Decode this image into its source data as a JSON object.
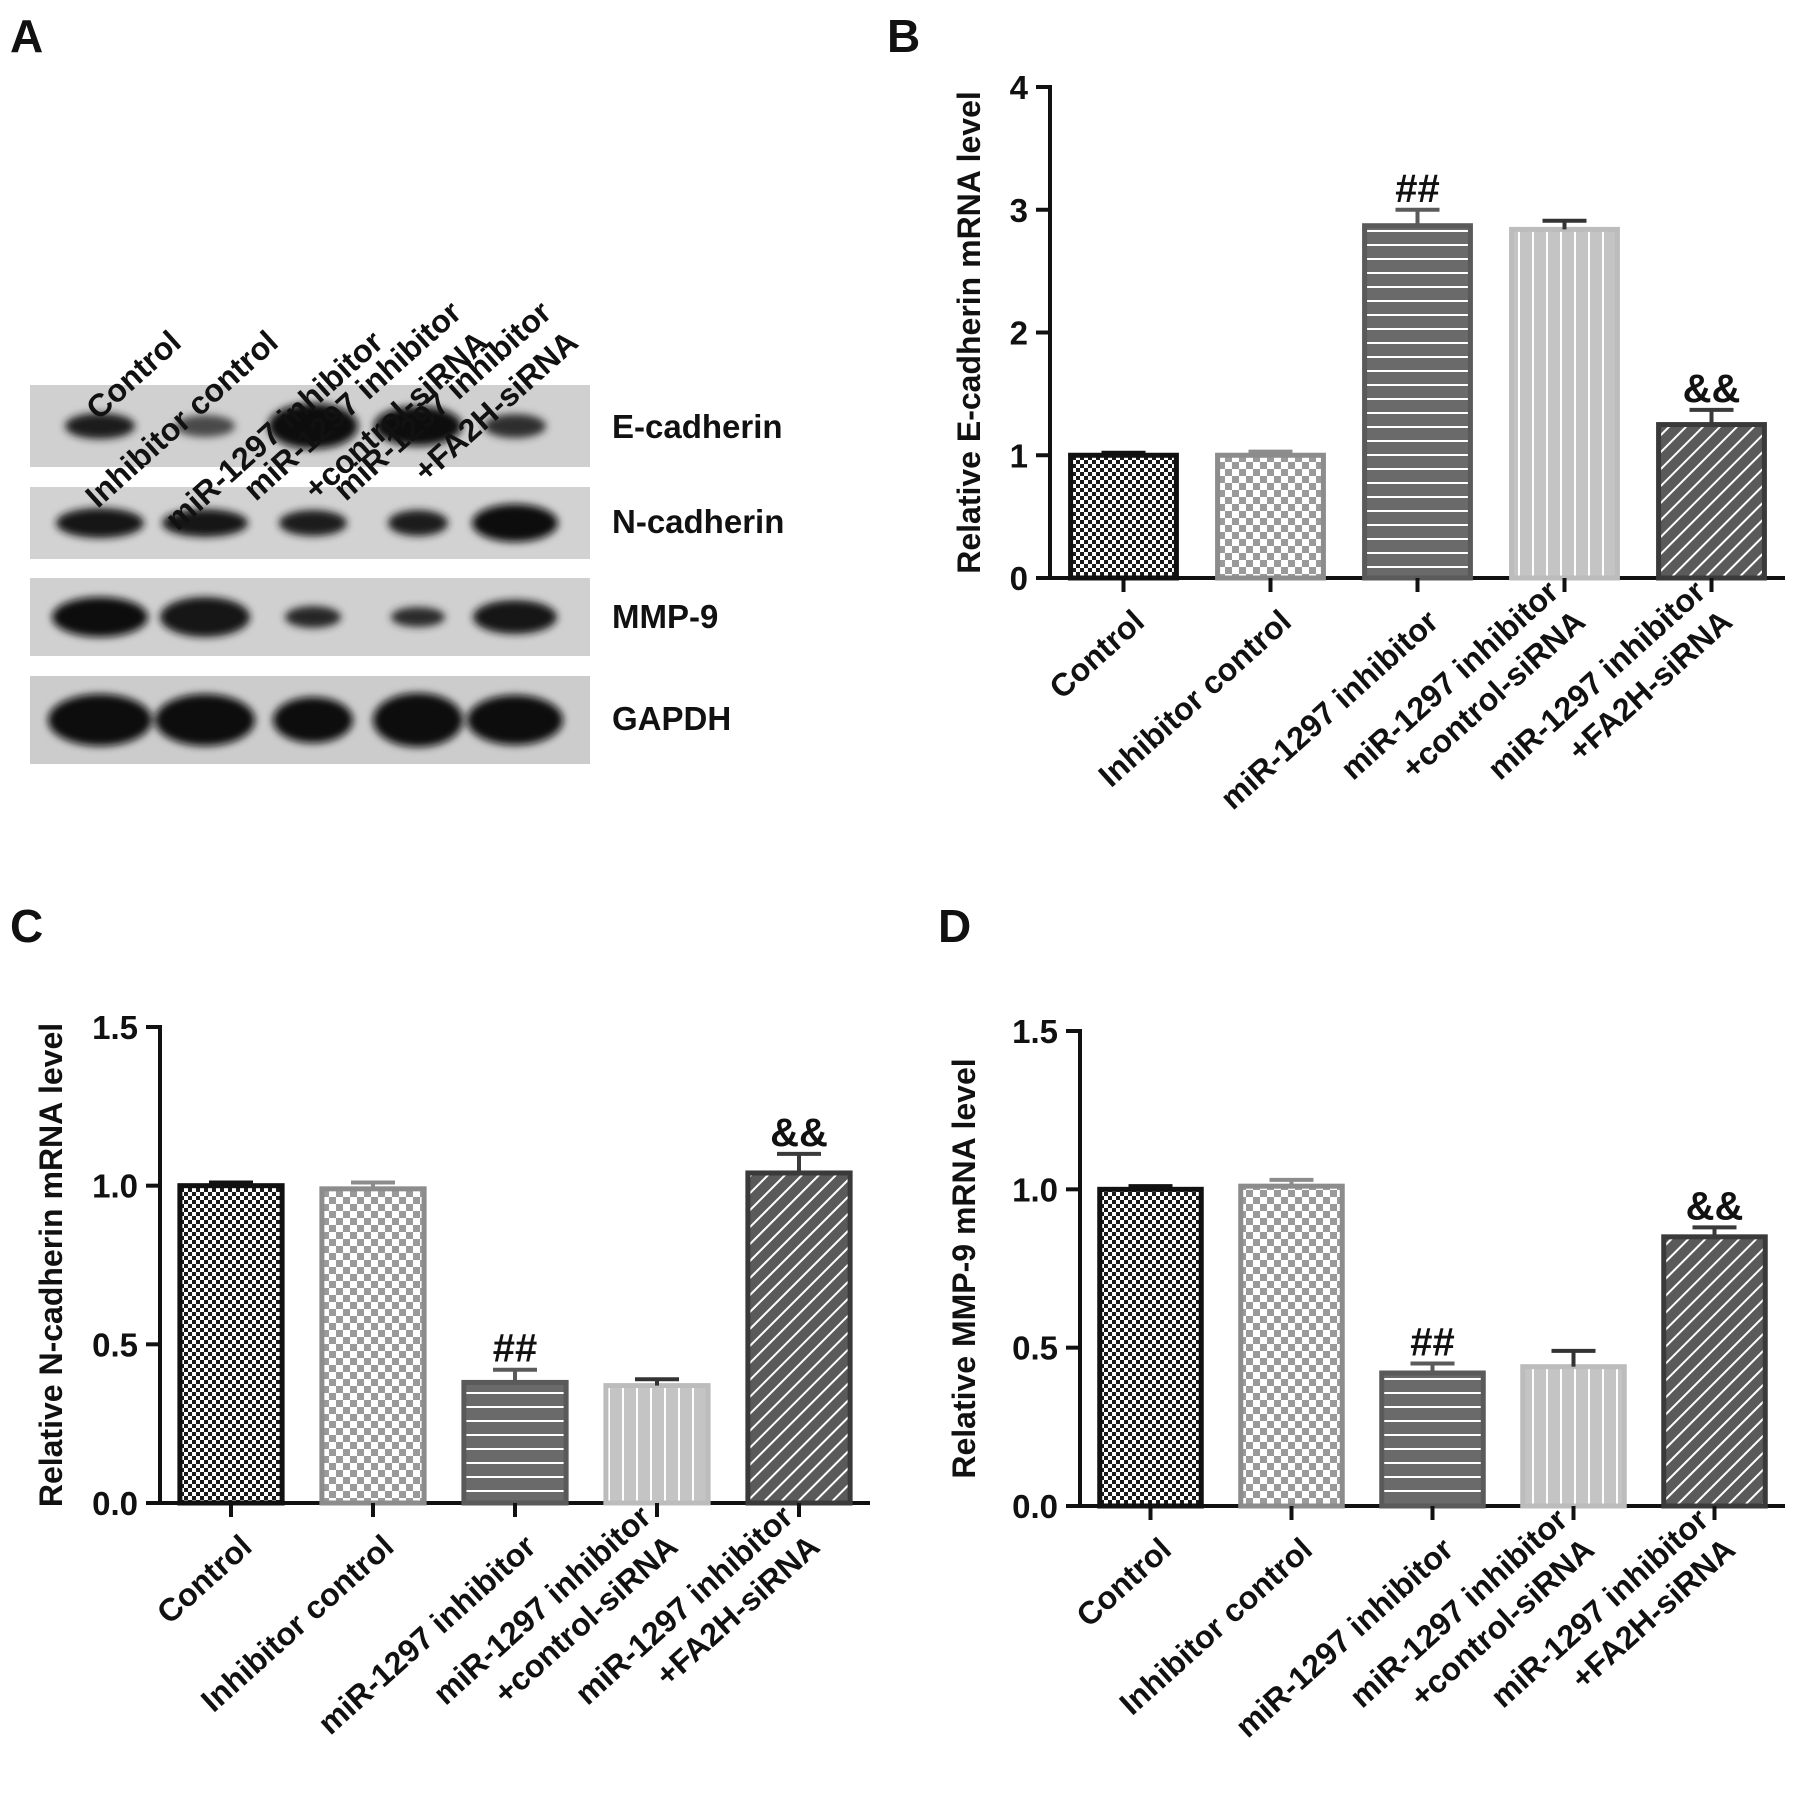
{
  "panels": {
    "A": "A",
    "B": "B",
    "C": "C",
    "D": "D"
  },
  "blot": {
    "lanes": [
      [
        "Control"
      ],
      [
        "Inhibitor control"
      ],
      [
        "miR-1297 inhibitor"
      ],
      [
        "miR-1297 inhibitor",
        "+control-siRNA"
      ],
      [
        "miR-1297 inhibitor",
        "+FA2H-siRNA"
      ]
    ],
    "proteins": [
      "E-cadherin",
      "N-cadherin",
      "MMP-9",
      "GAPDH"
    ]
  },
  "chart_data": [
    {
      "panel": "B",
      "type": "bar",
      "categories": [
        [
          "Control"
        ],
        [
          "Inhibitor control"
        ],
        [
          "miR-1297 inhibitor"
        ],
        [
          "miR-1297 inhibitor",
          "+control-siRNA"
        ],
        [
          "miR-1297 inhibitor",
          "+FA2H-siRNA"
        ]
      ],
      "values": [
        1.0,
        1.0,
        2.87,
        2.84,
        1.25
      ],
      "errors": [
        0.02,
        0.03,
        0.13,
        0.07,
        0.12
      ],
      "annotations": [
        "",
        "",
        "##",
        "",
        "&&"
      ],
      "ylabel": "Relative E-cadherin mRNA level",
      "ylim": [
        0,
        4
      ],
      "yticks": [
        "0",
        "1",
        "2",
        "3",
        "4"
      ],
      "ytick_values": [
        0,
        1,
        2,
        3,
        4
      ]
    },
    {
      "panel": "C",
      "type": "bar",
      "categories": [
        [
          "Control"
        ],
        [
          "Inhibitor control"
        ],
        [
          "miR-1297 inhibitor"
        ],
        [
          "miR-1297 inhibitor",
          "+control-siRNA"
        ],
        [
          "miR-1297 inhibitor",
          "+FA2H-siRNA"
        ]
      ],
      "values": [
        1.0,
        0.99,
        0.38,
        0.37,
        1.04
      ],
      "errors": [
        0.01,
        0.02,
        0.04,
        0.02,
        0.06
      ],
      "annotations": [
        "",
        "",
        "##",
        "",
        "&&"
      ],
      "ylabel": "Relative N-cadherin mRNA level",
      "ylim": [
        0,
        1.5
      ],
      "yticks": [
        "0.0",
        "0.5",
        "1.0",
        "1.5"
      ],
      "ytick_values": [
        0,
        0.5,
        1.0,
        1.5
      ]
    },
    {
      "panel": "D",
      "type": "bar",
      "categories": [
        [
          "Control"
        ],
        [
          "Inhibitor control"
        ],
        [
          "miR-1297 inhibitor"
        ],
        [
          "miR-1297 inhibitor",
          "+control-siRNA"
        ],
        [
          "miR-1297 inhibitor",
          "+FA2H-siRNA"
        ]
      ],
      "values": [
        1.0,
        1.01,
        0.42,
        0.44,
        0.85
      ],
      "errors": [
        0.01,
        0.02,
        0.03,
        0.05,
        0.03
      ],
      "annotations": [
        "",
        "",
        "##",
        "",
        "&&"
      ],
      "ylabel": "Relative MMP-9 mRNA level",
      "ylim": [
        0,
        1.5
      ],
      "yticks": [
        "0.0",
        "0.5",
        "1.0",
        "1.5"
      ],
      "ytick_values": [
        0,
        0.5,
        1.0,
        1.5
      ]
    }
  ]
}
